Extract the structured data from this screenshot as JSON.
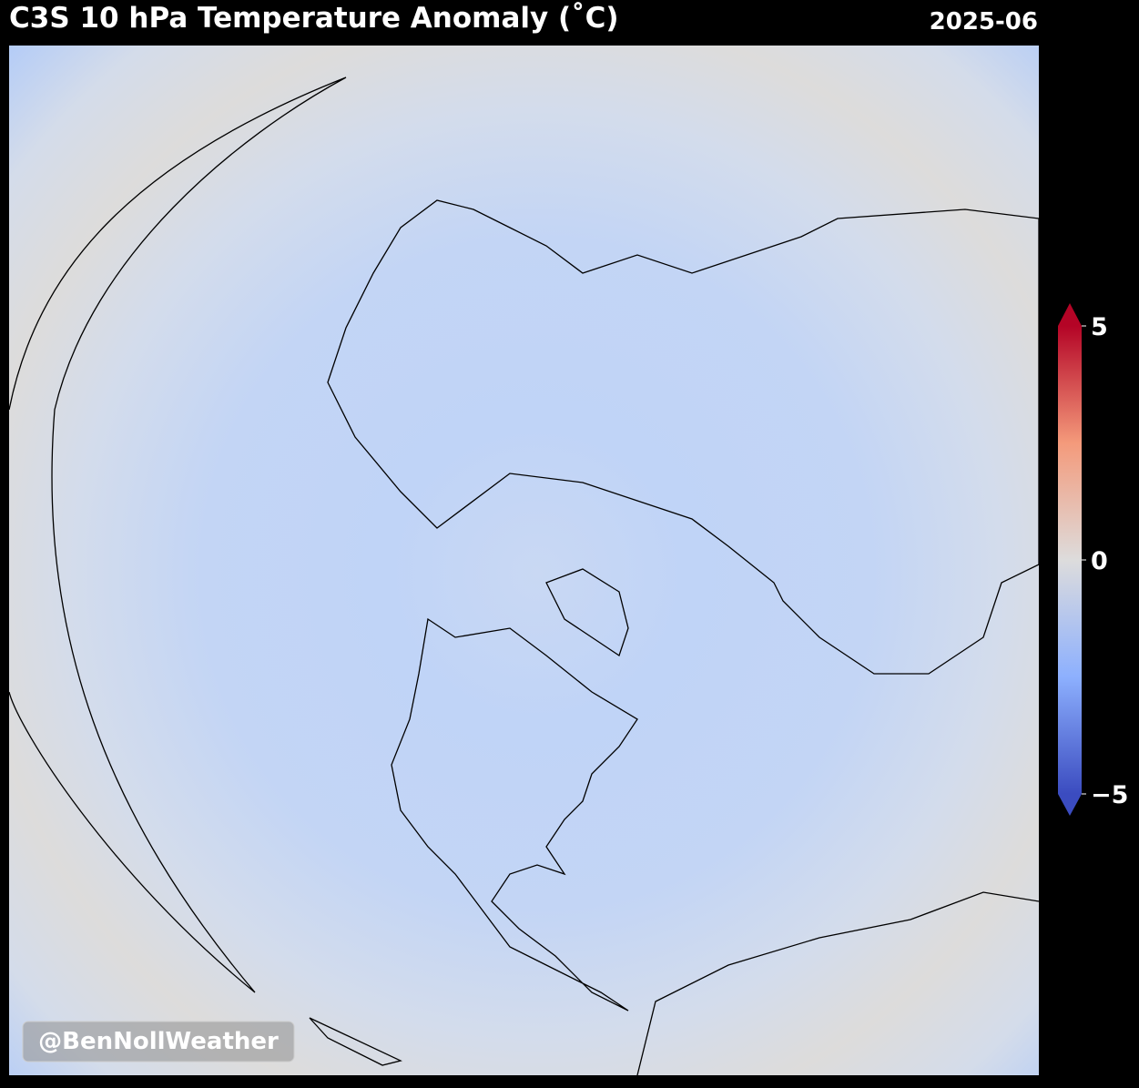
{
  "header": {
    "title": "C3S 10 hPa Temperature Anomaly (˚C)",
    "date": "2025-06"
  },
  "colorbar": {
    "range": [
      -5,
      5
    ],
    "ticks": [
      {
        "value": -5,
        "label": "−5"
      },
      0,
      5
    ]
  },
  "watermark": "@BenNollWeather"
}
